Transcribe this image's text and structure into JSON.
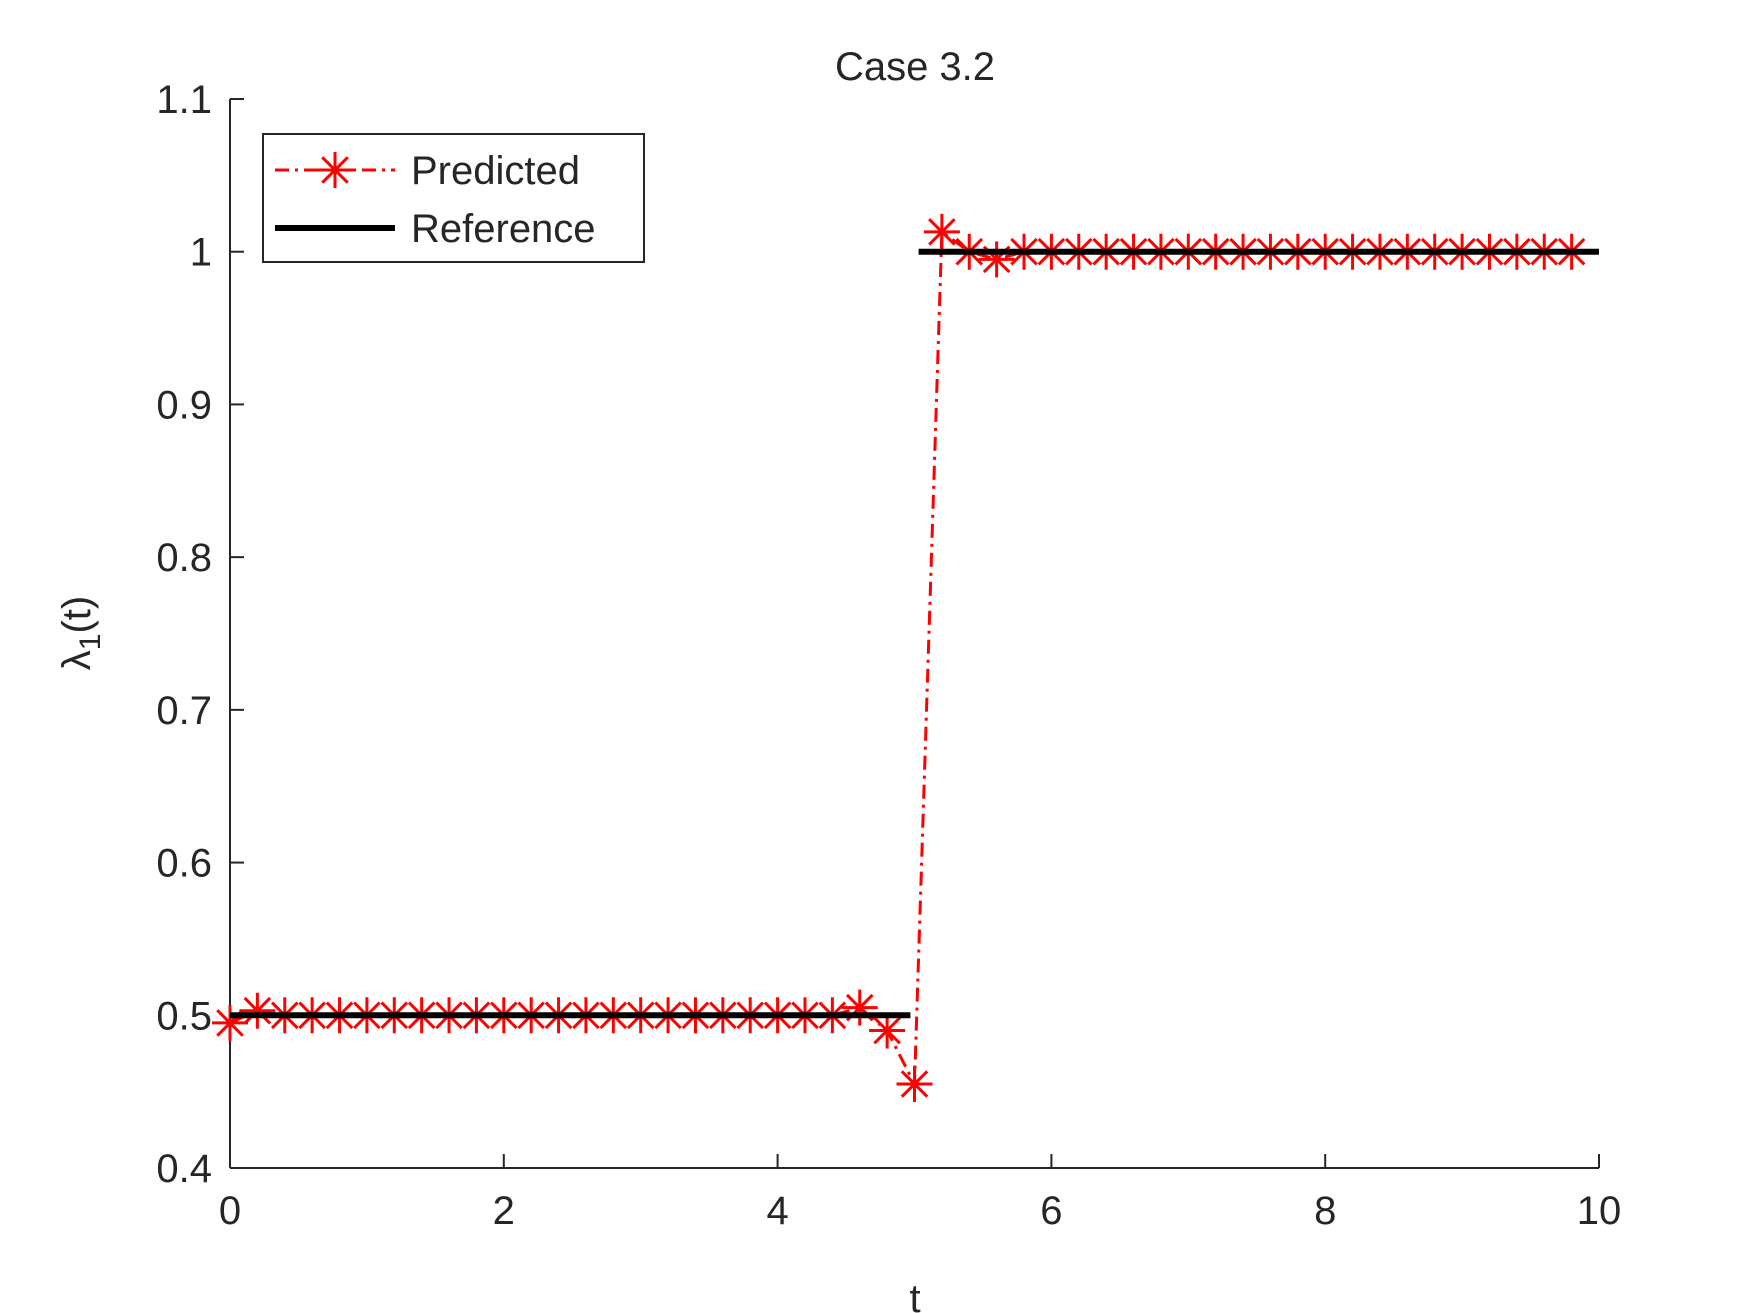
{
  "chart_data": {
    "type": "line",
    "title": "Case 3.2",
    "xlabel": "t",
    "ylabel": {
      "symbol": "λ",
      "subscript": "1",
      "suffix": "(t)"
    },
    "xlim": [
      0,
      10
    ],
    "ylim": [
      0.4,
      1.1
    ],
    "xticks": [
      0,
      2,
      4,
      6,
      8,
      10
    ],
    "yticks": [
      0.4,
      0.5,
      0.6,
      0.7,
      0.8,
      0.9,
      1,
      1.1
    ],
    "legend": "upper left",
    "series": [
      {
        "name": "Predicted",
        "color": "#ff0000",
        "style": "dash-dot",
        "marker": "asterisk",
        "x": [
          0,
          0.2,
          0.4,
          0.6,
          0.8,
          1,
          1.2,
          1.4,
          1.6,
          1.8,
          2,
          2.2,
          2.4,
          2.6,
          2.8,
          3,
          3.2,
          3.4,
          3.6,
          3.8,
          4,
          4.2,
          4.4,
          4.6,
          4.8,
          5,
          5.2,
          5.4,
          5.6,
          5.8,
          6,
          6.2,
          6.4,
          6.6,
          6.8,
          7,
          7.2,
          7.4,
          7.6,
          7.8,
          8,
          8.2,
          8.4,
          8.6,
          8.8,
          9,
          9.2,
          9.4,
          9.6,
          9.8
        ],
        "values": [
          0.495,
          0.503,
          0.5,
          0.5,
          0.5,
          0.5,
          0.5,
          0.5,
          0.5,
          0.5,
          0.5,
          0.5,
          0.5,
          0.5,
          0.5,
          0.5,
          0.5,
          0.5,
          0.5,
          0.5,
          0.5,
          0.5,
          0.5,
          0.505,
          0.49,
          0.455,
          1.013,
          1,
          0.995,
          1,
          1,
          1,
          1,
          1,
          1,
          1,
          1,
          1,
          1,
          1,
          1,
          1,
          1,
          1,
          1,
          1,
          1,
          1,
          1,
          1
        ]
      },
      {
        "name": "Reference",
        "color": "#000000",
        "style": "solid",
        "x": [
          0,
          4.97,
          5,
          5.03,
          10
        ],
        "values": [
          0.5,
          0.5,
          null,
          1,
          1
        ]
      }
    ]
  }
}
